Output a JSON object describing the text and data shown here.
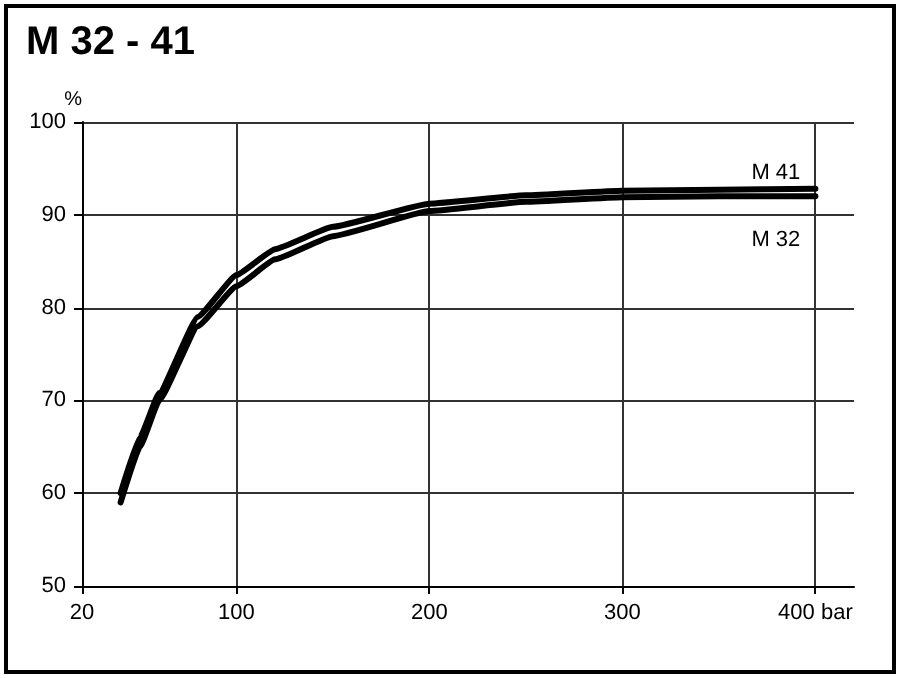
{
  "chart_data": {
    "type": "line",
    "title": "M 32 - 41",
    "ylabel": "%",
    "x": [
      40,
      50,
      60,
      80,
      100,
      120,
      150,
      200,
      250,
      300,
      350,
      400
    ],
    "series": [
      {
        "name": "M 41",
        "color": "#000000",
        "values": [
          60,
          66,
          70.8,
          79,
          83.5,
          86.3,
          88.7,
          91.2,
          92.1,
          92.6,
          92.7,
          92.8
        ]
      },
      {
        "name": "M 32",
        "color": "#000000",
        "values": [
          59,
          65,
          70,
          78,
          82.3,
          85.2,
          87.7,
          90.4,
          91.4,
          91.9,
          92,
          92
        ]
      }
    ],
    "xlim": [
      20,
      420
    ],
    "xticks": [
      20,
      100,
      200,
      300,
      {
        "value": 400,
        "label": "400 bar"
      }
    ],
    "ylim": [
      50,
      100
    ],
    "yticks": [
      50,
      60,
      70,
      80,
      90,
      100
    ],
    "grid": true,
    "legend": false,
    "marker": "none",
    "line_style": "solid"
  }
}
